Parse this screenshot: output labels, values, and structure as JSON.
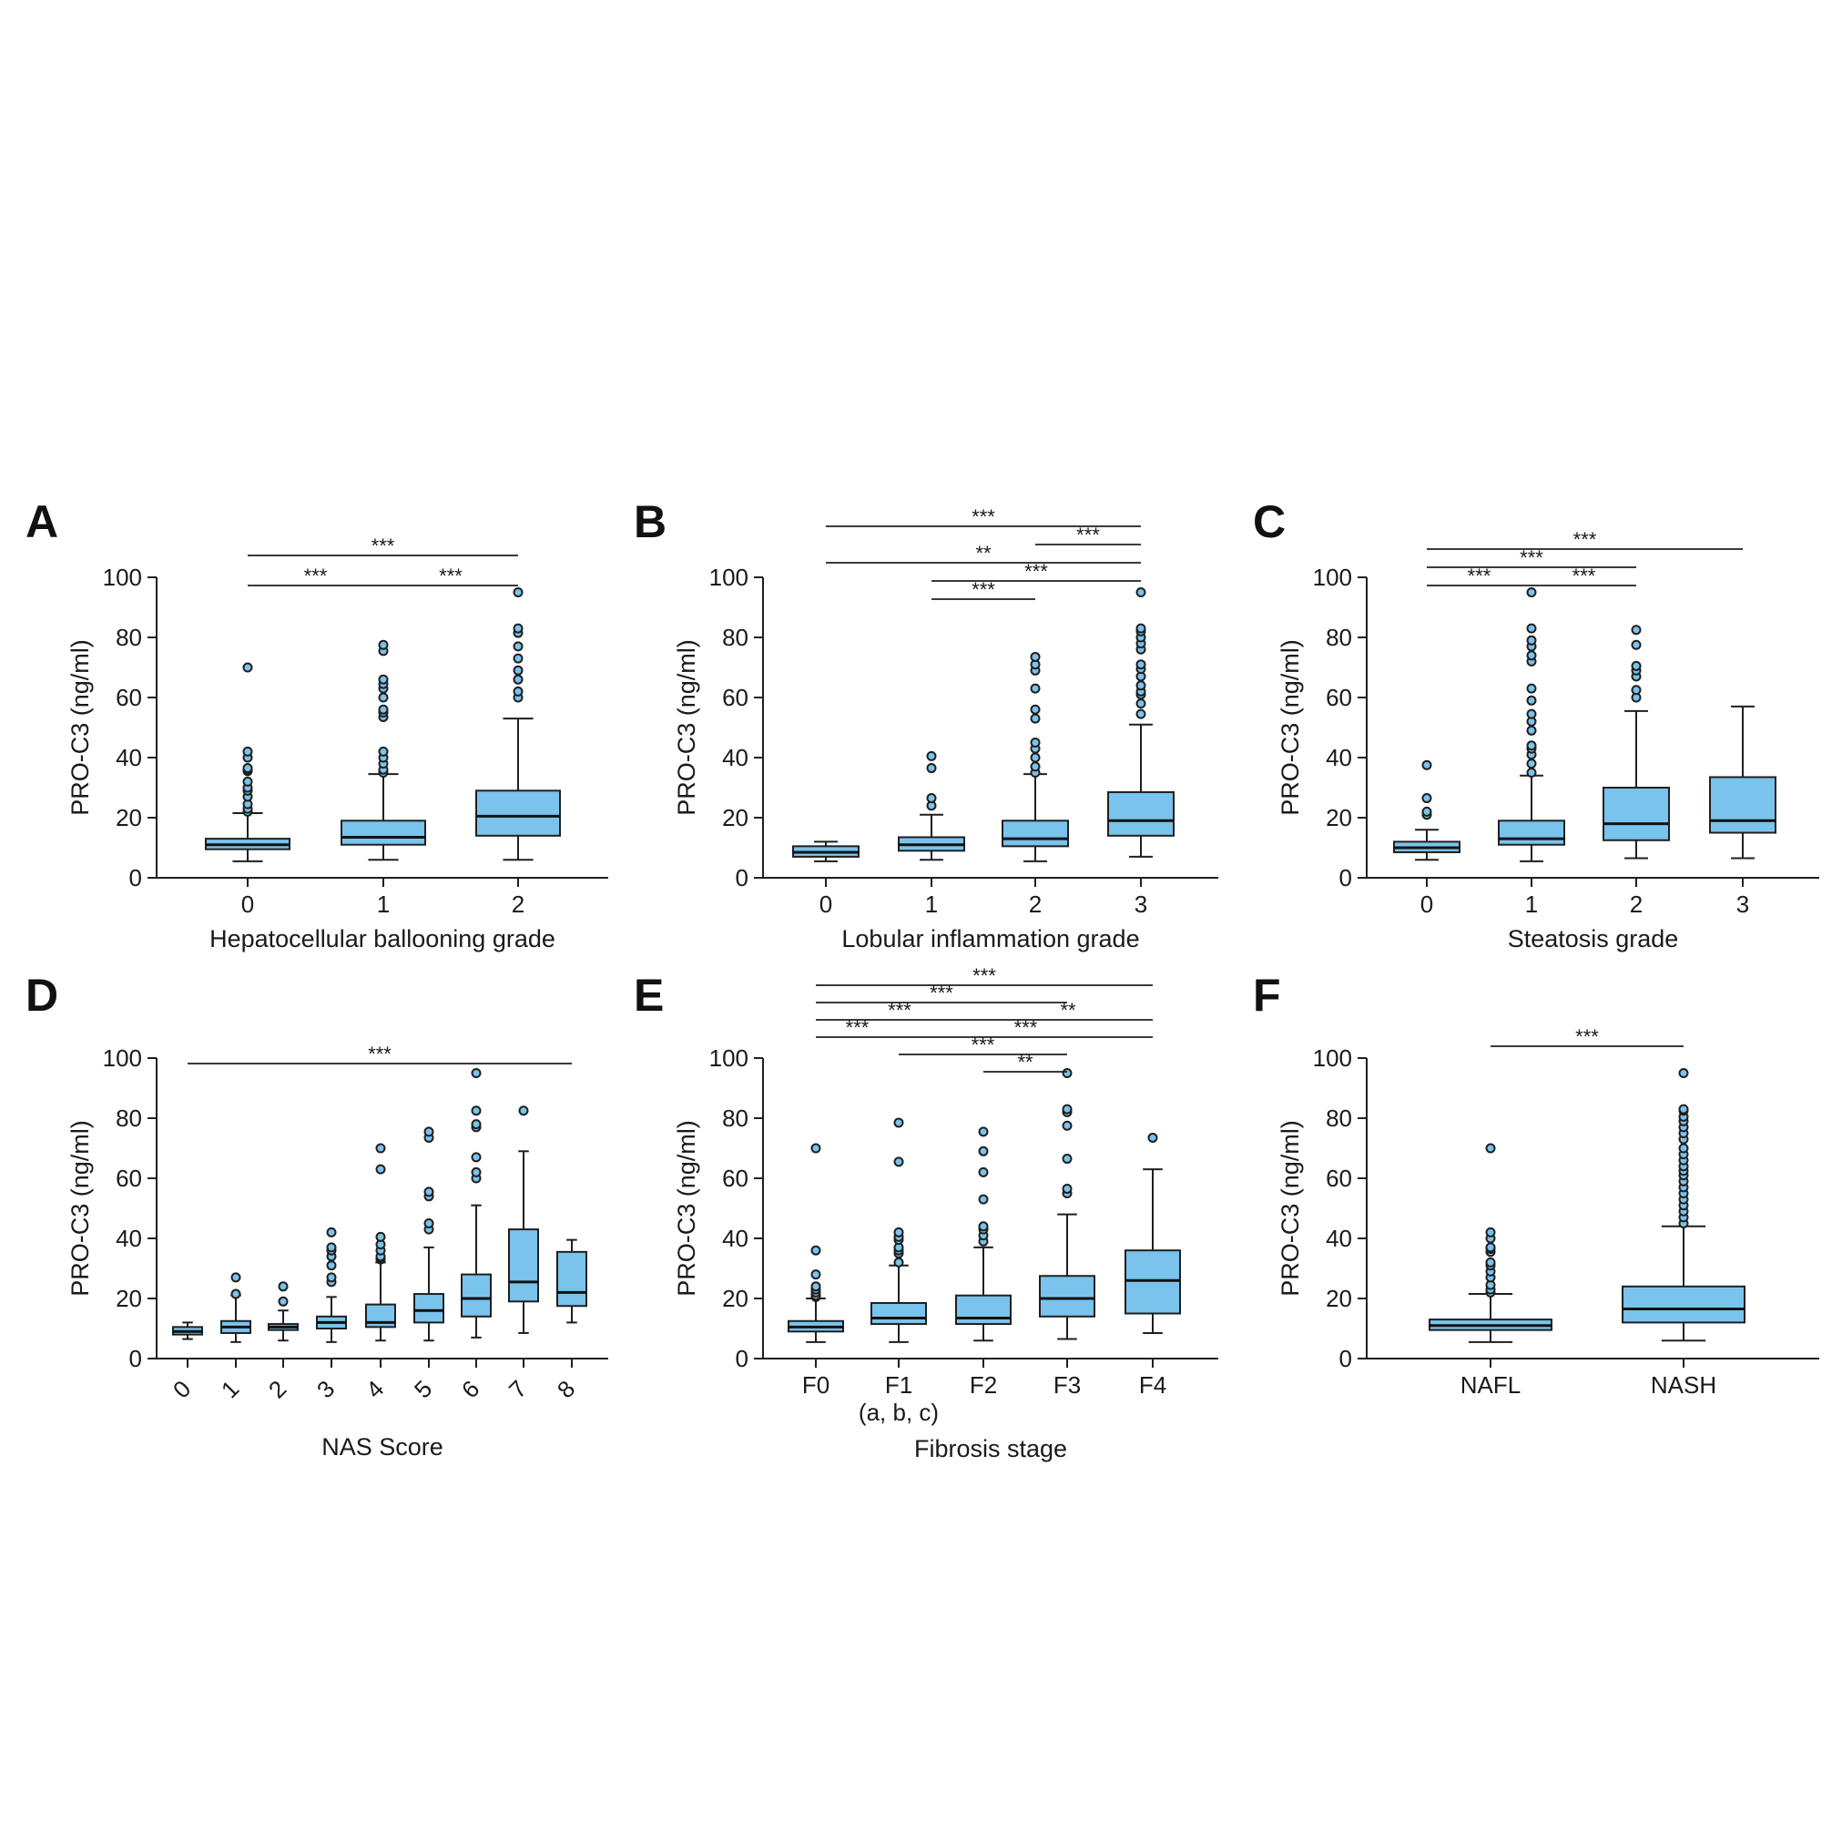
{
  "colors": {
    "box_fill": "#79c3ec",
    "outline": "#1f1f1f",
    "outlier_fill": "#79c3ec"
  },
  "chart_data": [
    {
      "panel": "A",
      "type": "box",
      "xlabel": "Hepatocellular ballooning grade",
      "ylabel": "PRO-C3 (ng/ml)",
      "ylim": [
        0,
        100
      ],
      "yticks": [
        0,
        20,
        40,
        60,
        80,
        100
      ],
      "rotate_xticks": false,
      "categories": [
        "0",
        "1",
        "2"
      ],
      "note": "",
      "boxes": [
        {
          "min": 5.5,
          "q1": 9.5,
          "median": 11,
          "q3": 13,
          "max": 21.5,
          "outliers": [
            22,
            23,
            24.5,
            27,
            29,
            30,
            32,
            35.5,
            36,
            36.5,
            40,
            42,
            70
          ]
        },
        {
          "min": 6,
          "q1": 11,
          "median": 13.5,
          "q3": 19,
          "max": 34.5,
          "outliers": [
            35,
            36,
            38,
            40,
            42,
            53.5,
            55,
            56,
            60,
            63,
            64.5,
            66,
            75.5,
            77.5
          ]
        },
        {
          "min": 6,
          "q1": 14,
          "median": 20.5,
          "q3": 29,
          "max": 53,
          "outliers": [
            60,
            62,
            66,
            69,
            73,
            77,
            81.5,
            83,
            95
          ]
        }
      ],
      "brackets": [
        {
          "from": 0,
          "to": 1,
          "level": 0,
          "label": "***"
        },
        {
          "from": 1,
          "to": 2,
          "level": 0,
          "label": "***"
        },
        {
          "from": 0,
          "to": 2,
          "level": 1,
          "label": "***"
        }
      ]
    },
    {
      "panel": "B",
      "type": "box",
      "xlabel": "Lobular inflammation grade",
      "ylabel": "PRO-C3 (ng/ml)",
      "ylim": [
        0,
        100
      ],
      "yticks": [
        0,
        20,
        40,
        60,
        80,
        100
      ],
      "rotate_xticks": false,
      "categories": [
        "0",
        "1",
        "2",
        "3"
      ],
      "note": "",
      "boxes": [
        {
          "min": 5.5,
          "q1": 7,
          "median": 8.5,
          "q3": 10.5,
          "max": 12,
          "outliers": []
        },
        {
          "min": 6,
          "q1": 9,
          "median": 11,
          "q3": 13.5,
          "max": 21,
          "outliers": [
            24,
            26.5,
            36.5,
            40.5
          ]
        },
        {
          "min": 5.5,
          "q1": 10.5,
          "median": 13,
          "q3": 19,
          "max": 34.5,
          "outliers": [
            35,
            37,
            40,
            43,
            45,
            53,
            56,
            63,
            69,
            71,
            73.5
          ]
        },
        {
          "min": 7,
          "q1": 14,
          "median": 19,
          "q3": 28.5,
          "max": 51,
          "outliers": [
            54.5,
            58,
            61,
            62,
            64,
            67,
            69.5,
            71,
            76,
            78,
            80,
            82,
            83,
            95
          ]
        }
      ],
      "brackets": [
        {
          "from": 1,
          "to": 2,
          "level": 0,
          "label": "***"
        },
        {
          "from": 1,
          "to": 3,
          "level": 1,
          "label": "***"
        },
        {
          "from": 0,
          "to": 3,
          "level": 2,
          "label": "**"
        },
        {
          "from": 2,
          "to": 3,
          "level": 3,
          "label": "***"
        },
        {
          "from": 0,
          "to": 3,
          "level": 4,
          "label": "***"
        }
      ]
    },
    {
      "panel": "C",
      "type": "box",
      "xlabel": "Steatosis grade",
      "ylabel": "PRO-C3 (ng/ml)",
      "ylim": [
        0,
        100
      ],
      "yticks": [
        0,
        20,
        40,
        60,
        80,
        100
      ],
      "rotate_xticks": false,
      "categories": [
        "0",
        "1",
        "2",
        "3"
      ],
      "note": "",
      "boxes": [
        {
          "min": 6,
          "q1": 8.5,
          "median": 10,
          "q3": 12,
          "max": 16,
          "outliers": [
            21,
            22,
            26.5,
            37.5
          ]
        },
        {
          "min": 5.5,
          "q1": 11,
          "median": 13,
          "q3": 19,
          "max": 34,
          "outliers": [
            35,
            38,
            41,
            43,
            44,
            49,
            52,
            54.5,
            59,
            63,
            72,
            74,
            77,
            79,
            83,
            95
          ]
        },
        {
          "min": 6.5,
          "q1": 12.5,
          "median": 18,
          "q3": 30,
          "max": 55.5,
          "outliers": [
            60,
            62.5,
            67,
            69,
            70.5,
            77.5,
            82.5
          ]
        },
        {
          "min": 6.5,
          "q1": 15,
          "median": 19,
          "q3": 33.5,
          "max": 57,
          "outliers": []
        }
      ],
      "brackets": [
        {
          "from": 0,
          "to": 1,
          "level": 0,
          "label": "***"
        },
        {
          "from": 1,
          "to": 2,
          "level": 0,
          "label": "***"
        },
        {
          "from": 0,
          "to": 2,
          "level": 1,
          "label": "***"
        },
        {
          "from": 0,
          "to": 3,
          "level": 2,
          "label": "***"
        }
      ]
    },
    {
      "panel": "D",
      "type": "box",
      "xlabel": "NAS Score",
      "ylabel": "PRO-C3 (ng/ml)",
      "ylim": [
        0,
        100
      ],
      "yticks": [
        0,
        20,
        40,
        60,
        80,
        100
      ],
      "rotate_xticks": true,
      "categories": [
        "0",
        "1",
        "2",
        "3",
        "4",
        "5",
        "6",
        "7",
        "8"
      ],
      "note": "",
      "boxes": [
        {
          "min": 6.5,
          "q1": 8,
          "median": 9,
          "q3": 10.5,
          "max": 12,
          "outliers": []
        },
        {
          "min": 5.5,
          "q1": 8.5,
          "median": 10.5,
          "q3": 12.5,
          "max": 21,
          "outliers": [
            21.5,
            27
          ]
        },
        {
          "min": 6,
          "q1": 9.5,
          "median": 10.5,
          "q3": 11.5,
          "max": 16,
          "outliers": [
            19,
            24
          ]
        },
        {
          "min": 5.5,
          "q1": 10,
          "median": 12,
          "q3": 14,
          "max": 20.5,
          "outliers": [
            25.5,
            27,
            31,
            34,
            36,
            37,
            42
          ]
        },
        {
          "min": 6,
          "q1": 10.5,
          "median": 12,
          "q3": 18,
          "max": 32,
          "outliers": [
            33,
            33.5,
            34,
            36,
            38,
            40.5,
            63,
            70
          ]
        },
        {
          "min": 6,
          "q1": 12,
          "median": 16,
          "q3": 21.5,
          "max": 37,
          "outliers": [
            43,
            45,
            54,
            55.5,
            73.5,
            75.5
          ]
        },
        {
          "min": 7,
          "q1": 14,
          "median": 20,
          "q3": 28,
          "max": 51,
          "outliers": [
            60,
            62,
            67,
            77,
            78,
            82.5,
            95
          ]
        },
        {
          "min": 8.5,
          "q1": 19,
          "median": 25.5,
          "q3": 43,
          "max": 69,
          "outliers": [
            82.5
          ]
        },
        {
          "min": 12,
          "q1": 17.5,
          "median": 22,
          "q3": 35.5,
          "max": 39.5,
          "outliers": []
        }
      ],
      "brackets": [
        {
          "from": 0,
          "to": 8,
          "level": 0,
          "label": "***"
        }
      ]
    },
    {
      "panel": "E",
      "type": "box",
      "xlabel": "Fibrosis stage",
      "ylabel": "PRO-C3 (ng/ml)",
      "ylim": [
        0,
        100
      ],
      "yticks": [
        0,
        20,
        40,
        60,
        80,
        100
      ],
      "rotate_xticks": false,
      "categories": [
        "F0",
        "F1",
        "F2",
        "F3",
        "F4"
      ],
      "note": "(a, b, c)",
      "boxes": [
        {
          "min": 5.5,
          "q1": 9,
          "median": 10.5,
          "q3": 12.5,
          "max": 20,
          "outliers": [
            20.5,
            21,
            22,
            23,
            24,
            28,
            36,
            70
          ]
        },
        {
          "min": 5.5,
          "q1": 11.5,
          "median": 13.5,
          "q3": 18.5,
          "max": 31,
          "outliers": [
            32,
            35,
            36,
            37,
            39.5,
            40.5,
            42,
            65.5,
            78.5
          ]
        },
        {
          "min": 6,
          "q1": 11.5,
          "median": 13.5,
          "q3": 21,
          "max": 37,
          "outliers": [
            39,
            41,
            43,
            44,
            53,
            62,
            69,
            75.5
          ]
        },
        {
          "min": 6.5,
          "q1": 14,
          "median": 20,
          "q3": 27.5,
          "max": 48,
          "outliers": [
            55,
            56.5,
            66.5,
            77.5,
            82,
            83,
            95
          ]
        },
        {
          "min": 8.5,
          "q1": 15,
          "median": 26,
          "q3": 36,
          "max": 63,
          "outliers": [
            73.5
          ]
        }
      ],
      "brackets": [
        {
          "from": 2,
          "to": 3,
          "level": 0,
          "label": "**"
        },
        {
          "from": 1,
          "to": 3,
          "level": 1,
          "label": "***"
        },
        {
          "from": 0,
          "to": 1,
          "level": 2,
          "label": "***"
        },
        {
          "from": 1,
          "to": 4,
          "level": 2,
          "label": "***"
        },
        {
          "from": 0,
          "to": 2,
          "level": 3,
          "label": "***"
        },
        {
          "from": 2,
          "to": 4,
          "level": 3,
          "label": "**"
        },
        {
          "from": 0,
          "to": 3,
          "level": 4,
          "label": "***"
        },
        {
          "from": 0,
          "to": 4,
          "level": 5,
          "label": "***"
        }
      ]
    },
    {
      "panel": "F",
      "type": "box",
      "xlabel": "",
      "ylabel": "PRO-C3 (ng/ml)",
      "ylim": [
        0,
        100
      ],
      "yticks": [
        0,
        20,
        40,
        60,
        80,
        100
      ],
      "rotate_xticks": false,
      "categories": [
        "NAFL",
        "NASH"
      ],
      "note": "",
      "boxes": [
        {
          "min": 5.5,
          "q1": 9.5,
          "median": 11,
          "q3": 13,
          "max": 21.5,
          "outliers": [
            22,
            23,
            24.5,
            27,
            29,
            31,
            32,
            35.5,
            36.5,
            37,
            40,
            42,
            70
          ]
        },
        {
          "min": 6,
          "q1": 12,
          "median": 16.5,
          "q3": 24,
          "max": 44,
          "outliers": [
            45,
            47,
            49,
            51,
            53,
            55,
            57,
            59,
            61,
            62.5,
            64,
            66,
            68,
            70,
            73,
            75,
            77,
            79,
            80.5,
            82.5,
            83,
            95
          ]
        }
      ],
      "brackets": [
        {
          "from": 0,
          "to": 1,
          "level": 0,
          "label": "***"
        }
      ]
    }
  ]
}
